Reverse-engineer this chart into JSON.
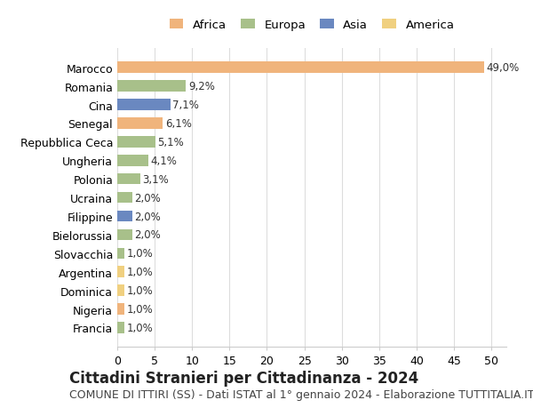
{
  "countries": [
    "Marocco",
    "Romania",
    "Cina",
    "Senegal",
    "Repubblica Ceca",
    "Ungheria",
    "Polonia",
    "Ucraina",
    "Filippine",
    "Bielorussia",
    "Slovacchia",
    "Argentina",
    "Dominica",
    "Nigeria",
    "Francia"
  ],
  "values": [
    49.0,
    9.2,
    7.1,
    6.1,
    5.1,
    4.1,
    3.1,
    2.0,
    2.0,
    2.0,
    1.0,
    1.0,
    1.0,
    1.0,
    1.0
  ],
  "labels": [
    "49,0%",
    "9,2%",
    "7,1%",
    "6,1%",
    "5,1%",
    "4,1%",
    "3,1%",
    "2,0%",
    "2,0%",
    "2,0%",
    "1,0%",
    "1,0%",
    "1,0%",
    "1,0%",
    "1,0%"
  ],
  "continents": [
    "Africa",
    "Europa",
    "Asia",
    "Africa",
    "Europa",
    "Europa",
    "Europa",
    "Europa",
    "Asia",
    "Europa",
    "Europa",
    "America",
    "America",
    "Africa",
    "Europa"
  ],
  "continent_colors": {
    "Africa": "#f0b47c",
    "Europa": "#a8c08a",
    "Asia": "#6a88c0",
    "America": "#f0d080"
  },
  "legend_order": [
    "Africa",
    "Europa",
    "Asia",
    "America"
  ],
  "title": "Cittadini Stranieri per Cittadinanza - 2024",
  "subtitle": "COMUNE DI ITTIRI (SS) - Dati ISTAT al 1° gennaio 2024 - Elaborazione TUTTITALIA.IT",
  "xlim": [
    0,
    52
  ],
  "xticks": [
    0,
    5,
    10,
    15,
    20,
    25,
    30,
    35,
    40,
    45,
    50
  ],
  "background_color": "#ffffff",
  "grid_color": "#dddddd",
  "bar_height": 0.6,
  "title_fontsize": 12,
  "subtitle_fontsize": 9,
  "tick_fontsize": 9,
  "label_fontsize": 8.5
}
